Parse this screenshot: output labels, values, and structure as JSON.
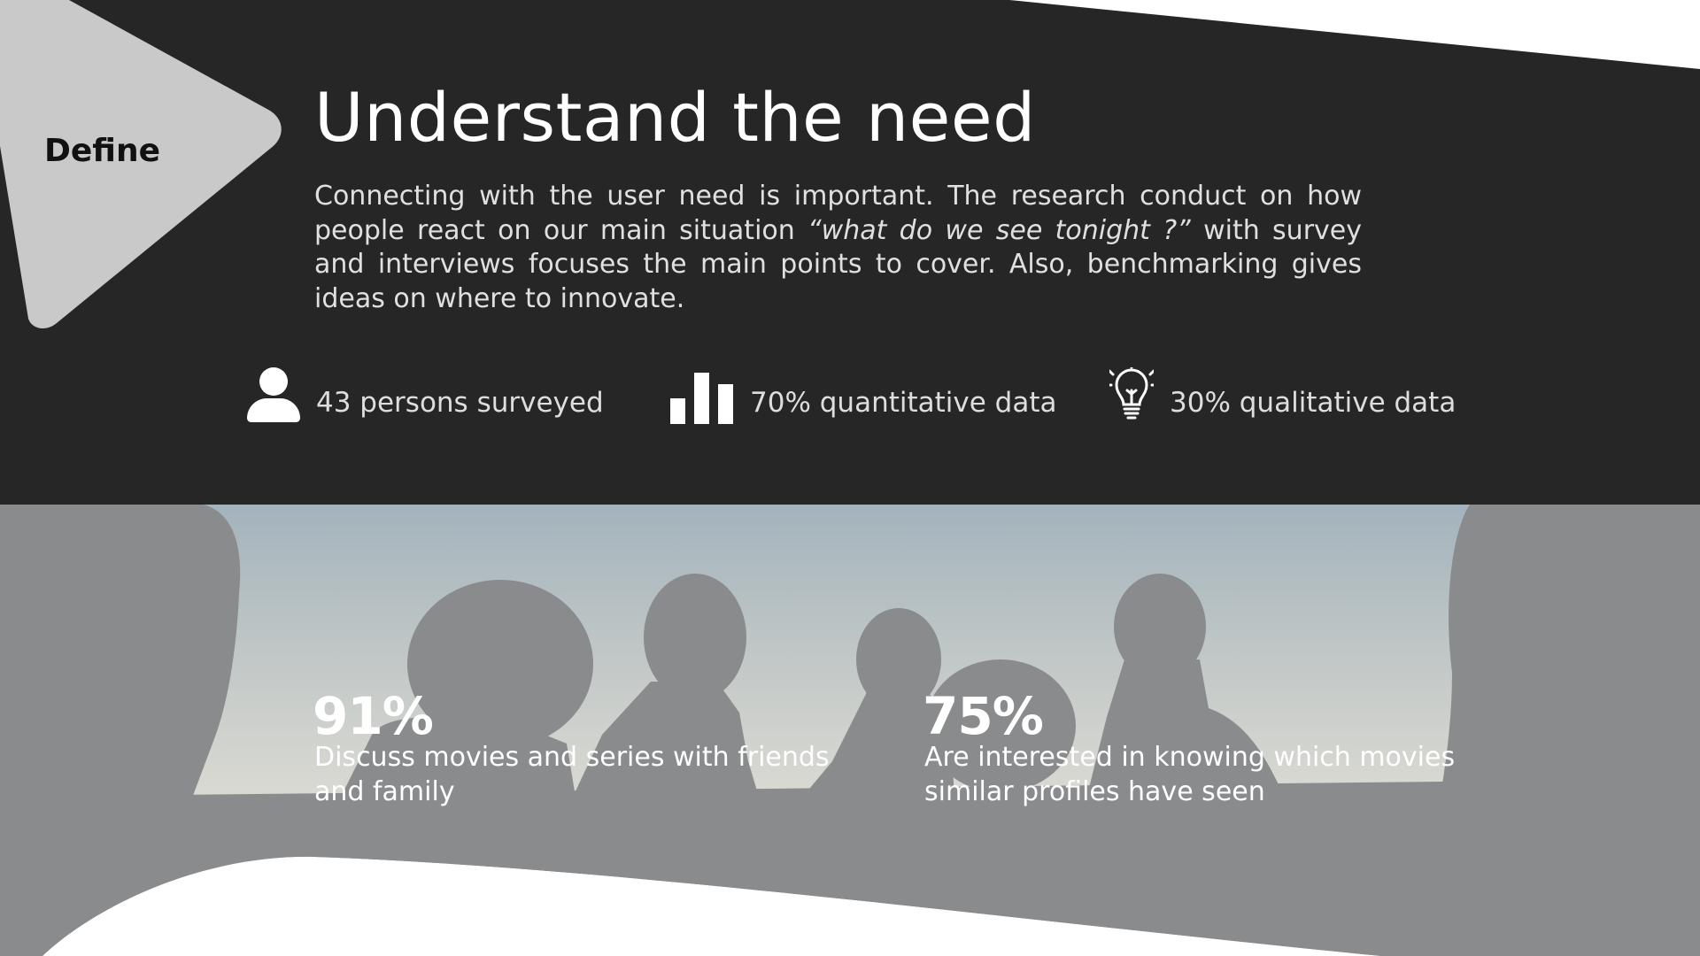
{
  "header": {
    "badge": "Define",
    "title": "Understand the need",
    "intro_before": "Connecting with the user need is important. The research conduct on how people react on our main situation ",
    "intro_quote": "“what do we see tonight ?”",
    "intro_after": " with survey and in­terviews focuses the main points to cover. Also, benchmarking gives ideas on where to innovate."
  },
  "stats": [
    {
      "icon": "person-icon",
      "label": "43 persons surveyed"
    },
    {
      "icon": "bar-chart-icon",
      "label": "70% quantitative data"
    },
    {
      "icon": "lightbulb-icon",
      "label": "30% qualitative data"
    }
  ],
  "highlights": [
    {
      "value": "91%",
      "text": "Discuss movies and series with friends and family"
    },
    {
      "value": "75%",
      "text": "Are interested in knowing which movies similar profiles have seen"
    }
  ],
  "colors": {
    "header_bg": "#262626",
    "badge_bg": "#c9c9c9",
    "photo_overlay": "#8a8b8d",
    "text": "#ffffff"
  }
}
